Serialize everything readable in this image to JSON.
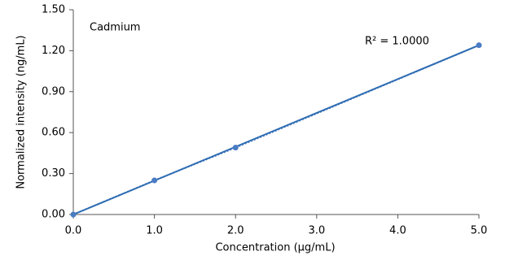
{
  "chart_data": {
    "type": "scatter",
    "x_label": "Concentration (µg/mL)",
    "y_label": "Normalized intensity (ng/mL)",
    "annotations": [
      "Cadmium",
      "R² = 1.0000"
    ],
    "series": [
      {
        "color": "#4a7cc4",
        "line_style": "dotted",
        "x": [
          0,
          1,
          2,
          5
        ],
        "values": [
          0,
          0.25,
          0.49,
          1.24
        ]
      }
    ],
    "trendline": {
      "color": "#2f6db3",
      "x": [
        0,
        5
      ],
      "values": [
        0,
        1.24
      ]
    },
    "xlim": [
      0,
      5
    ],
    "xticks": [
      {
        "value": 0,
        "label": "0.0"
      },
      {
        "value": 1,
        "label": "1.0"
      },
      {
        "value": 2,
        "label": "2.0"
      },
      {
        "value": 3,
        "label": "3.0"
      },
      {
        "value": 4,
        "label": "4.0"
      },
      {
        "value": 5,
        "label": "5.0"
      }
    ],
    "ylim": [
      0,
      1.5
    ],
    "yticks": [
      {
        "value": 0,
        "label": "0.00"
      },
      {
        "value": 0.3,
        "label": "0.30"
      },
      {
        "value": 0.6,
        "label": "0.60"
      },
      {
        "value": 0.9,
        "label": "0.90"
      },
      {
        "value": 1.2,
        "label": "1.20"
      },
      {
        "value": 1.5,
        "label": "1.50"
      }
    ],
    "grid": false
  }
}
